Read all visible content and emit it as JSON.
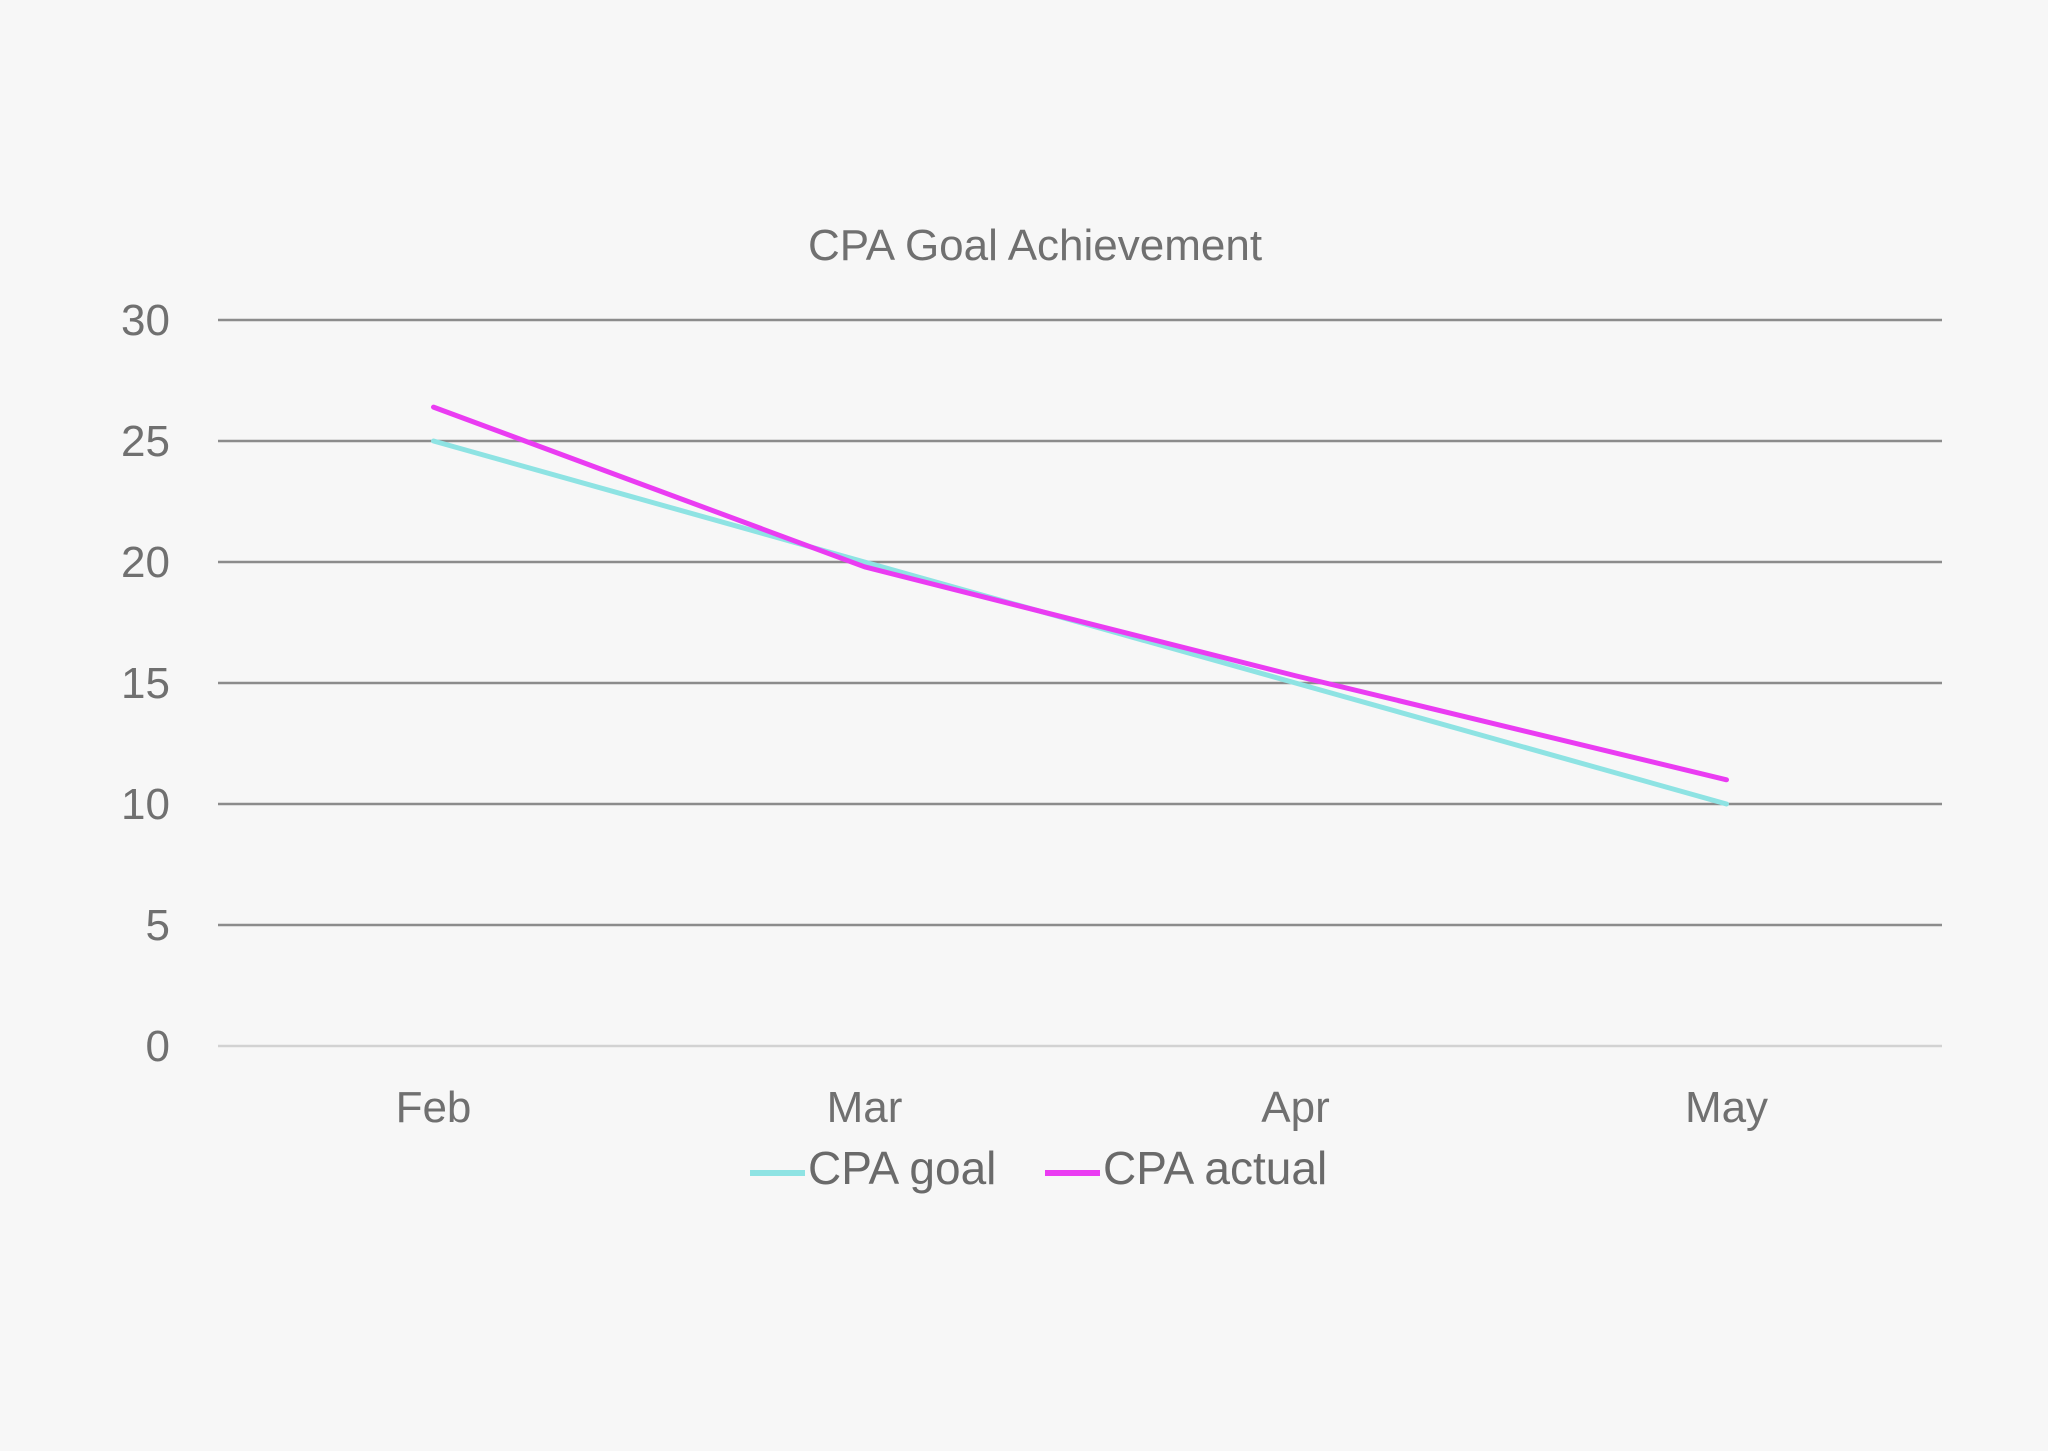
{
  "chart_data": {
    "type": "line",
    "title": "CPA Goal Achievement",
    "categories": [
      "Feb",
      "Mar",
      "Apr",
      "May"
    ],
    "series": [
      {
        "name": "CPA goal",
        "values": [
          25,
          20,
          15,
          10
        ],
        "color": "#8ee3e3"
      },
      {
        "name": "CPA actual",
        "values": [
          26.4,
          19.8,
          15.3,
          11.0
        ],
        "color": "#ea3cf2"
      }
    ],
    "ylim": [
      0,
      30
    ],
    "yticks": [
      "0",
      "5",
      "10",
      "15",
      "20",
      "25",
      "30"
    ],
    "grid": true,
    "legend_position": "bottom"
  },
  "colors": {
    "background": "#f7f7f7"
  }
}
